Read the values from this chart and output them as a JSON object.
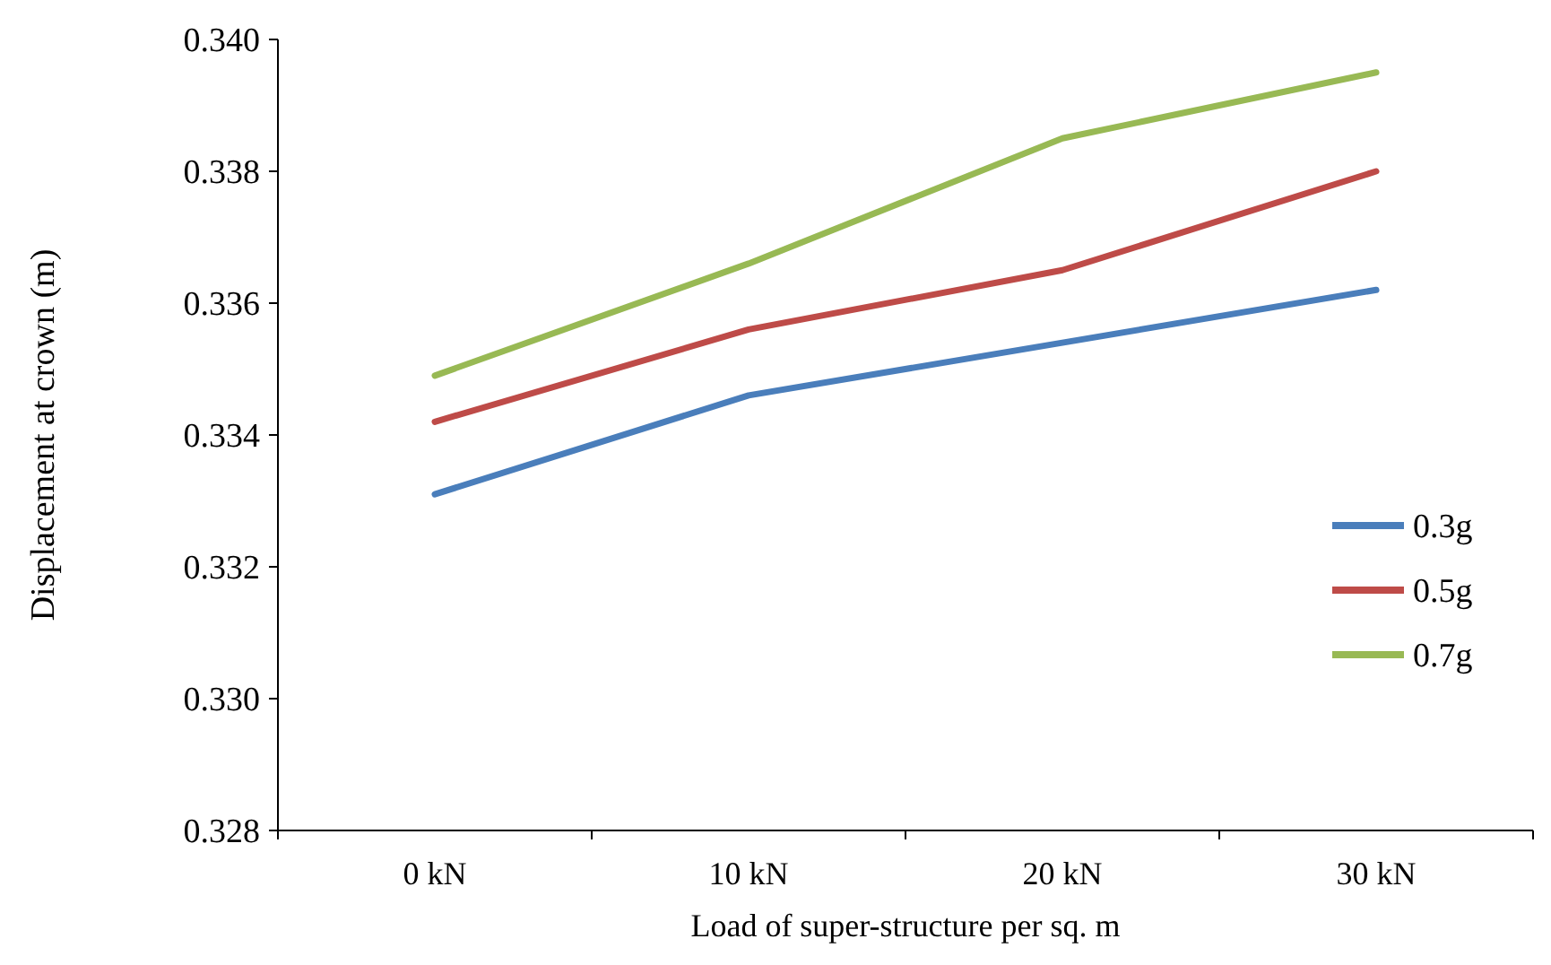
{
  "chart_data": {
    "type": "line",
    "xlabel": "Load of super-structure per sq. m",
    "ylabel": "Displacement at crown (m)",
    "categories": [
      "0 kN",
      "10 kN",
      "20 kN",
      "30 kN"
    ],
    "ylim": [
      0.328,
      0.34
    ],
    "yticks": [
      {
        "value": 0.328,
        "label": "0.328"
      },
      {
        "value": 0.33,
        "label": "0.330"
      },
      {
        "value": 0.332,
        "label": "0.332"
      },
      {
        "value": 0.334,
        "label": "0.334"
      },
      {
        "value": 0.336,
        "label": "0.336"
      },
      {
        "value": 0.338,
        "label": "0.338"
      },
      {
        "value": 0.34,
        "label": "0.340"
      }
    ],
    "grid": false,
    "legend": "right",
    "marker": "none",
    "line_style": "solid",
    "series": [
      {
        "name": "0.3g",
        "color": "#4a7ebb",
        "values": [
          0.3331,
          0.3346,
          0.3354,
          0.3362
        ]
      },
      {
        "name": "0.5g",
        "color": "#be4b48",
        "values": [
          0.3342,
          0.3356,
          0.3365,
          0.338
        ]
      },
      {
        "name": "0.7g",
        "color": "#98b954",
        "values": [
          0.3349,
          0.3366,
          0.3385,
          0.3395
        ]
      }
    ]
  }
}
